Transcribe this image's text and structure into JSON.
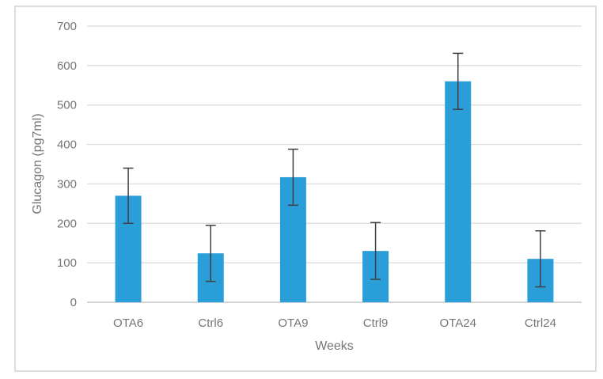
{
  "figure": {
    "background_color": "#FFFFFF",
    "frame_border_color": "#DCDCDC"
  },
  "chart_data": {
    "type": "bar",
    "title": "",
    "xlabel": "Weeks",
    "ylabel": "Glucagon (pg7ml)",
    "categories": [
      "OTA6",
      "Ctrl6",
      "OTA9",
      "Ctrl9",
      "OTA24",
      "Ctrl24"
    ],
    "values": [
      270,
      124,
      317,
      130,
      560,
      110
    ],
    "error_bars": [
      70,
      71,
      71,
      72,
      71,
      71
    ],
    "ylim": [
      0,
      700
    ],
    "yticks": [
      0,
      100,
      200,
      300,
      400,
      500,
      600,
      700
    ],
    "grid": true,
    "legend": false,
    "colors": {
      "bar": "#2A9ED9",
      "error_bar": "#404040",
      "gridline": "#D9D9D9",
      "axis_line": "#C6C6C6",
      "text": "#757575"
    }
  }
}
